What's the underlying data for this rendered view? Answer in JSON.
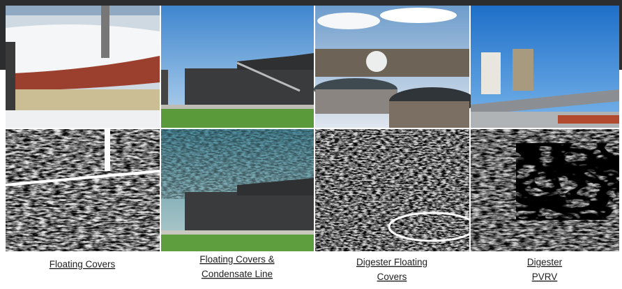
{
  "captions": [
    {
      "lines": [
        "Floating Covers"
      ]
    },
    {
      "lines": [
        "Floating Covers &",
        "Condensate Line"
      ]
    },
    {
      "lines": [
        "Digester Floating",
        "Covers"
      ]
    },
    {
      "lines": [
        "Digester",
        "PVRV"
      ]
    }
  ]
}
